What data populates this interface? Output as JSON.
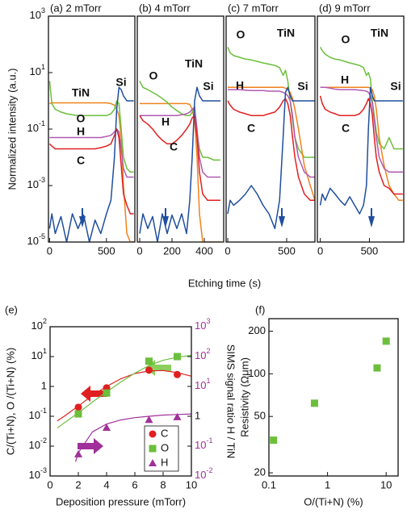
{
  "profiles_axes": {
    "ylabel": "Normalized intensity (a.u.)",
    "xlabel": "Etching time (s)"
  },
  "chart_data": [
    {
      "type": "line",
      "title": "(a) 2 mTorr",
      "ylog": true,
      "ylim": [
        1e-05,
        1000
      ],
      "xlim": [
        -10,
        750
      ],
      "yticks": [
        {
          "value": 1000,
          "label": "10",
          "sup": "3"
        },
        {
          "value": 10,
          "label": "10",
          "sup": "1"
        },
        {
          "value": 0.1,
          "label": "10",
          "sup": "-1"
        },
        {
          "value": 0.001,
          "label": "10",
          "sup": "-3"
        },
        {
          "value": 1e-05,
          "label": "10",
          "sup": "-5"
        }
      ],
      "xticks": [
        0,
        500
      ],
      "x": [
        0,
        20,
        50,
        100,
        150,
        200,
        250,
        300,
        350,
        400,
        450,
        500,
        540,
        570,
        590,
        610,
        630,
        650,
        680,
        710,
        740
      ],
      "series": [
        {
          "name": "TiN",
          "color": "#f0821e",
          "values": [
            0.8,
            0.85,
            0.85,
            0.85,
            0.85,
            0.85,
            0.85,
            0.85,
            0.85,
            0.85,
            0.85,
            0.85,
            0.8,
            0.7,
            0.5,
            0.3,
            0.05,
            0.001,
            2e-05,
            1e-05,
            1e-05
          ]
        },
        {
          "name": "O",
          "color": "#6cbf3c",
          "values": [
            5,
            0.8,
            0.5,
            0.4,
            0.35,
            0.32,
            0.3,
            0.3,
            0.3,
            0.3,
            0.3,
            0.3,
            0.35,
            0.5,
            1,
            0.8,
            0.1,
            0.01,
            0.004,
            0.003,
            0.003
          ]
        },
        {
          "name": "H",
          "color": "#b05ab0",
          "values": [
            0.05,
            0.05,
            0.05,
            0.05,
            0.05,
            0.05,
            0.05,
            0.05,
            0.05,
            0.05,
            0.05,
            0.055,
            0.06,
            0.08,
            0.1,
            0.08,
            0.02,
            0.004,
            0.002,
            0.002,
            0.002
          ]
        },
        {
          "name": "C",
          "color": "#e02020",
          "values": [
            0.03,
            0.025,
            0.02,
            0.02,
            0.02,
            0.02,
            0.02,
            0.02,
            0.02,
            0.02,
            0.022,
            0.025,
            0.03,
            0.06,
            0.1,
            0.05,
            0.005,
            0.0005,
            0.0002,
            0.0001,
            0.0001
          ]
        },
        {
          "name": "Si",
          "color": "#1f4e9e",
          "values": [
            3e-05,
            0.0001,
            2e-05,
            8e-05,
            1e-05,
            0.0001,
            3e-05,
            9e-05,
            1e-05,
            6e-05,
            2e-05,
            0.0001,
            0.0003,
            0.01,
            0.5,
            3,
            2.5,
            1.5,
            1,
            1,
            1
          ]
        }
      ]
    },
    {
      "type": "line",
      "title": "(b) 4 mTorr",
      "ylog": true,
      "ylim": [
        1e-05,
        1000
      ],
      "xlim": [
        -15,
        520
      ],
      "xticks": [
        0,
        200,
        400
      ],
      "x": [
        0,
        20,
        50,
        80,
        110,
        140,
        170,
        200,
        230,
        260,
        290,
        310,
        325,
        340,
        355,
        370,
        390,
        420,
        460,
        500
      ],
      "series": [
        {
          "name": "TiN",
          "color": "#f0821e",
          "values": [
            0.8,
            0.8,
            0.8,
            0.8,
            0.8,
            0.8,
            0.8,
            0.8,
            0.8,
            0.8,
            0.8,
            0.75,
            0.5,
            0.2,
            0.01,
            0.0001,
            1e-05,
            1e-05,
            1e-05,
            1e-05
          ]
        },
        {
          "name": "O",
          "color": "#6cbf3c",
          "values": [
            5,
            3,
            2.5,
            2,
            1.6,
            1.2,
            0.9,
            0.6,
            0.45,
            0.35,
            0.3,
            0.3,
            0.4,
            0.6,
            0.08,
            0.02,
            0.01,
            0.01,
            0.008,
            0.008
          ]
        },
        {
          "name": "H",
          "color": "#b05ab0",
          "values": [
            0.3,
            0.3,
            0.3,
            0.3,
            0.3,
            0.3,
            0.3,
            0.3,
            0.3,
            0.32,
            0.35,
            0.4,
            0.5,
            0.6,
            0.1,
            0.01,
            0.003,
            0.002,
            0.002,
            0.002
          ]
        },
        {
          "name": "C",
          "color": "#e02020",
          "values": [
            0.3,
            0.2,
            0.15,
            0.1,
            0.06,
            0.04,
            0.03,
            0.03,
            0.04,
            0.06,
            0.1,
            0.15,
            0.25,
            0.3,
            0.05,
            0.003,
            0.0005,
            0.0003,
            0.0003,
            0.0003
          ]
        },
        {
          "name": "Si",
          "color": "#1f4e9e",
          "values": [
            2e-05,
            0.0001,
            3e-05,
            8e-05,
            1e-05,
            0.0001,
            2e-05,
            9e-05,
            3e-05,
            0.0001,
            2e-05,
            0.0003,
            0.01,
            1,
            3,
            1.5,
            1,
            1,
            1,
            1
          ]
        }
      ]
    },
    {
      "type": "line",
      "title": "(c) 7 mTorr",
      "ylog": true,
      "ylim": [
        1e-05,
        1000
      ],
      "xlim": [
        -14,
        740
      ],
      "xticks": [
        0,
        500
      ],
      "x": [
        0,
        20,
        50,
        100,
        150,
        200,
        250,
        300,
        350,
        400,
        440,
        470,
        490,
        510,
        530,
        550,
        570,
        600,
        650,
        700,
        740
      ],
      "series": [
        {
          "name": "O",
          "color": "#6cbf3c",
          "values": [
            80,
            50,
            40,
            35,
            30,
            28,
            25,
            22,
            20,
            18,
            15,
            8,
            12,
            5,
            1,
            0.2,
            0.05,
            0.02,
            0.01,
            0.01,
            0.01
          ]
        },
        {
          "name": "TiN",
          "color": "#f0821e",
          "values": [
            3,
            3,
            3,
            3,
            3,
            3,
            3,
            3,
            3,
            3,
            3,
            3,
            2.8,
            2.5,
            2,
            1.2,
            0.5,
            0.1,
            0.005,
            0.001,
            0.0003
          ]
        },
        {
          "name": "H",
          "color": "#b05ab0",
          "values": [
            2.5,
            2.5,
            2.5,
            2.5,
            2.4,
            2.3,
            2.3,
            2.3,
            2.2,
            2.2,
            2.2,
            2,
            1.8,
            1.5,
            1,
            0.3,
            0.05,
            0.01,
            0.003,
            0.002,
            0.002
          ]
        },
        {
          "name": "C",
          "color": "#e02020",
          "values": [
            1,
            0.7,
            0.5,
            0.4,
            0.35,
            0.3,
            0.3,
            0.3,
            0.35,
            0.4,
            0.6,
            1,
            1.2,
            0.8,
            0.3,
            0.05,
            0.01,
            0.002,
            0.0005,
            0.0003,
            0.0003
          ]
        },
        {
          "name": "Si",
          "color": "#1f4e9e",
          "values": [
            0.0001,
            0.0003,
            0.0002,
            0.0003,
            0.0005,
            0.001,
            0.0005,
            0.0002,
            0.0001,
            3e-05,
            0.0003,
            0.05,
            2,
            3,
            1.5,
            1,
            1,
            1,
            1,
            1,
            1
          ]
        }
      ]
    },
    {
      "type": "line",
      "title": "(d) 9 mTorr",
      "ylog": true,
      "ylim": [
        1e-05,
        1000
      ],
      "xlim": [
        -30,
        850
      ],
      "xticks": [
        0,
        500
      ],
      "x": [
        0,
        20,
        50,
        100,
        150,
        200,
        250,
        300,
        350,
        400,
        440,
        470,
        490,
        510,
        530,
        550,
        570,
        600,
        650,
        700,
        750,
        800,
        840
      ],
      "series": [
        {
          "name": "O",
          "color": "#6cbf3c",
          "values": [
            80,
            60,
            45,
            35,
            30,
            28,
            25,
            22,
            20,
            18,
            15,
            8,
            10,
            6,
            1,
            0.3,
            0.08,
            0.03,
            0.02,
            0.05,
            0.02,
            0.02,
            0.02
          ]
        },
        {
          "name": "TiN",
          "color": "#f0821e",
          "values": [
            3,
            3,
            3,
            3,
            3,
            3,
            3,
            3,
            3,
            3,
            3,
            3,
            3,
            2.8,
            2.5,
            1.5,
            0.5,
            0.05,
            0.005,
            0.001,
            0.0005,
            0.0003,
            0.0003
          ]
        },
        {
          "name": "H",
          "color": "#b05ab0",
          "values": [
            3,
            3,
            3,
            2.8,
            2.6,
            2.5,
            2.5,
            2.5,
            2.5,
            2.4,
            2.3,
            2.2,
            2,
            1.5,
            0.8,
            0.2,
            0.05,
            0.01,
            0.004,
            0.003,
            0.003,
            0.003,
            0.003
          ]
        },
        {
          "name": "C",
          "color": "#e02020",
          "values": [
            1.5,
            0.8,
            0.5,
            0.4,
            0.35,
            0.3,
            0.3,
            0.3,
            0.3,
            0.35,
            0.5,
            0.8,
            1.2,
            0.8,
            0.3,
            0.05,
            0.01,
            0.003,
            0.001,
            0.0008,
            0.0005,
            0.0005,
            0.0005
          ]
        },
        {
          "name": "Si",
          "color": "#1f4e9e",
          "values": [
            0.0002,
            0.0005,
            0.0003,
            0.0008,
            0.0005,
            0.0003,
            0.0002,
            0.0004,
            0.0002,
            0.0001,
            0.0002,
            0.001,
            0.1,
            3,
            1.5,
            1,
            1,
            1,
            1,
            1,
            1,
            1,
            1
          ]
        }
      ]
    },
    {
      "type": "scatter",
      "label": "(e)",
      "xlabel": "Deposition pressure (mTorr)",
      "ylabel": "C/(Ti+N), O /(Ti+N) (%)",
      "y2label": "SIMS signal ratio H / TiN",
      "y2color": "#a0309a",
      "xlim": [
        0,
        10
      ],
      "xticks": [
        0,
        2,
        4,
        6,
        8,
        10
      ],
      "ylog": true,
      "ylim": [
        0.001,
        100
      ],
      "yticks": [
        {
          "value": 100,
          "label": "10",
          "sup": "2"
        },
        {
          "value": 10,
          "label": "10",
          "sup": "1"
        },
        1,
        {
          "value": 0.1,
          "label": "10",
          "sup": "-1"
        },
        {
          "value": 0.01,
          "label": "10",
          "sup": "-2"
        },
        {
          "value": 0.001,
          "label": "10",
          "sup": "-3"
        }
      ],
      "y2log": true,
      "y2lim": [
        0.01,
        1000
      ],
      "y2ticks": [
        {
          "value": 1000,
          "label": "10",
          "sup": "3"
        },
        {
          "value": 100,
          "label": "10",
          "sup": "2"
        },
        {
          "value": 10,
          "label": "10",
          "sup": "1"
        },
        1,
        {
          "value": 0.1,
          "label": "10",
          "sup": "-1"
        },
        {
          "value": 0.01,
          "label": "10",
          "sup": "-2"
        }
      ],
      "x": [
        2,
        4,
        7,
        9
      ],
      "series": [
        {
          "name": "C",
          "color": "#e02020",
          "marker": "circle",
          "values": [
            0.2,
            0.9,
            3.5,
            2.5
          ]
        },
        {
          "name": "O",
          "color": "#6cbf3c",
          "marker": "square",
          "values": [
            0.12,
            0.6,
            7,
            10
          ]
        },
        {
          "name": "H",
          "color": "#a0309a",
          "marker": "triangle",
          "axis": "y2",
          "values": [
            0.054,
            0.42,
            0.77,
            0.95
          ]
        }
      ],
      "fits": [
        {
          "color": "#e02020",
          "x": [
            0.5,
            1,
            2,
            3,
            4,
            5,
            6,
            7,
            8,
            9,
            10
          ],
          "values": [
            0.07,
            0.1,
            0.22,
            0.5,
            1,
            1.8,
            2.7,
            3.3,
            3.4,
            2.9,
            2.2
          ]
        },
        {
          "color": "#6cbf3c",
          "x": [
            0.5,
            1,
            2,
            3,
            4,
            5,
            6,
            7,
            8,
            9,
            10
          ],
          "values": [
            0.04,
            0.06,
            0.13,
            0.3,
            0.65,
            1.4,
            2.8,
            5,
            7.5,
            9.5,
            11
          ]
        },
        {
          "color": "#a0309a",
          "axis": "y2",
          "x": [
            1.8,
            2,
            3,
            4,
            5,
            6,
            7,
            8,
            9,
            10
          ],
          "values": [
            0.03,
            0.06,
            0.3,
            0.55,
            0.75,
            0.9,
            1.0,
            1.1,
            1.15,
            1.2
          ]
        }
      ]
    },
    {
      "type": "scatter",
      "label": "(f)",
      "xlabel": "O/(Ti+N) (%)",
      "ylabel": "Resistivity (Ωμm)",
      "xlog": true,
      "xlim": [
        0.1,
        16
      ],
      "xticks": [
        0.1,
        1,
        10
      ],
      "ylog": true,
      "ylim": [
        19,
        245
      ],
      "yticks": [
        20,
        50,
        100,
        200
      ],
      "x": [
        0.12,
        0.6,
        7,
        10
      ],
      "series": [
        {
          "color": "#6cbf3c",
          "marker": "square",
          "values": [
            34,
            62,
            110,
            170
          ]
        }
      ]
    }
  ]
}
